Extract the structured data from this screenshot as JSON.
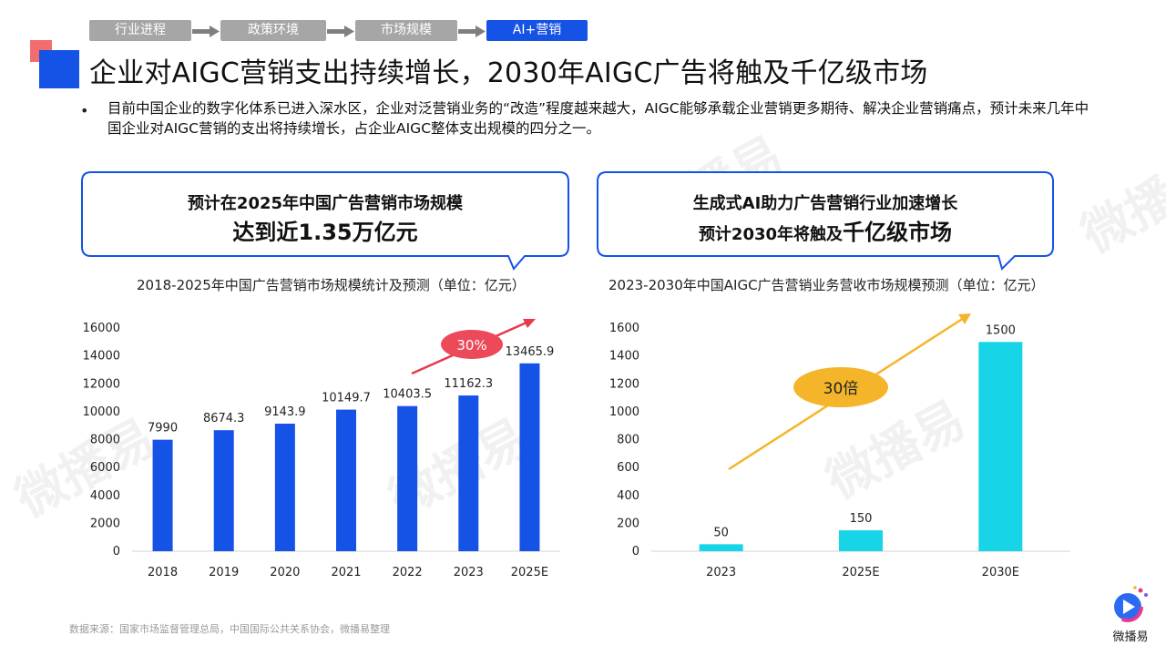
{
  "breadcrumb": [
    {
      "label": "行业进程",
      "active": false
    },
    {
      "label": "政策环境",
      "active": false
    },
    {
      "label": "市场规模",
      "active": false
    },
    {
      "label": "AI+营销",
      "active": true
    }
  ],
  "title": "企业对AIGC营销支出持续增长，2030年AIGC广告将触及千亿级市场",
  "bullet": "目前中国企业的数字化体系已进入深水区，企业对泛营销业务的“改造”程度越来越大，AIGC能够承载企业营销更多期待、解决企业营销痛点，预计未来几年中国企业对AIGC营销的支出将持续增长，占企业AIGC整体支出规模的四分之一。",
  "callouts": {
    "left": {
      "line1": "预计在2025年中国广告营销市场规模",
      "line2": "达到近1.35万亿元"
    },
    "right": {
      "line1": "生成式AI助力广告营销行业加速增长",
      "line2a": "预计2030年将触及",
      "line2b": "千亿级市场"
    }
  },
  "watermark": "微播易",
  "source": "数据来源：国家市场监督管理总局，中国国际公共关系协会，微播易整理",
  "logo_text": "微播易",
  "colors": {
    "accent_blue": "#1552e6",
    "bar_cyan": "#17d4e6",
    "red_badge": "#ec4a5a",
    "orange_badge": "#f5b52a"
  },
  "chart_data": [
    {
      "type": "bar",
      "title": "2018-2025年中国广告营销市场规模统计及预测（单位：亿元）",
      "categories": [
        "2018",
        "2019",
        "2020",
        "2021",
        "2022",
        "2023",
        "2025E"
      ],
      "values": [
        7990,
        8674.3,
        9143.9,
        10149.7,
        10403.5,
        11162.3,
        13465.9
      ],
      "data_labels": [
        "7990",
        "8674.3",
        "9143.9",
        "10149.7",
        "10403.5",
        "11162.3",
        "13465.9"
      ],
      "yticks": [
        "0",
        "2000",
        "4000",
        "6000",
        "8000",
        "10000",
        "12000",
        "14000",
        "16000"
      ],
      "ylim": [
        0,
        16000
      ],
      "annotation": "30%",
      "color": "#1552e6"
    },
    {
      "type": "bar",
      "title": "2023-2030年中国AIGC广告营销业务营收市场规模预测（单位：亿元）",
      "categories": [
        "2023",
        "2025E",
        "2030E"
      ],
      "values": [
        50,
        150,
        1500
      ],
      "data_labels": [
        "50",
        "150",
        "1500"
      ],
      "yticks": [
        "0",
        "200",
        "400",
        "600",
        "800",
        "1000",
        "1200",
        "1400",
        "1600"
      ],
      "ylim": [
        0,
        1600
      ],
      "annotation": "30倍",
      "color": "#17d4e6"
    }
  ]
}
